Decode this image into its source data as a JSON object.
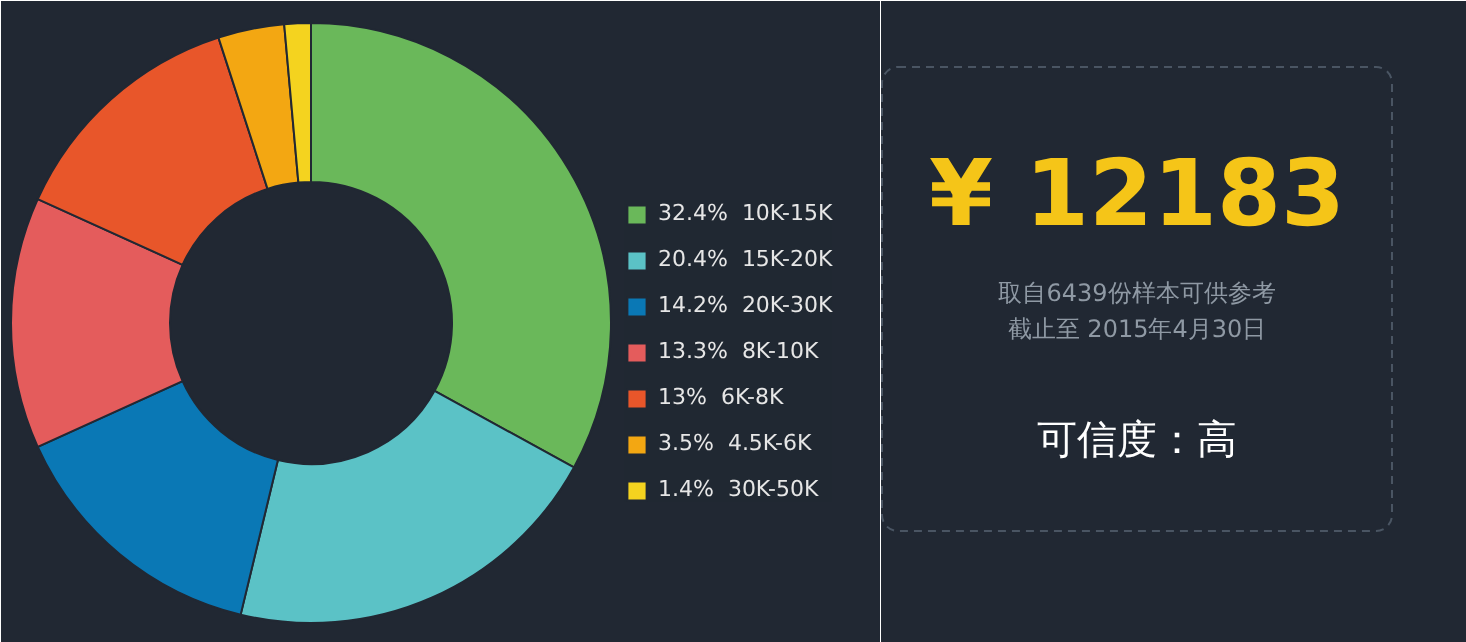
{
  "chart_data": [
    {
      "type": "donut",
      "categories": [
        "10K-15K",
        "15K-20K",
        "20K-30K",
        "8K-10K",
        "6K-8K",
        "4.5K-6K",
        "30K-50K"
      ],
      "values": [
        32.4,
        20.4,
        14.2,
        13.3,
        13,
        3.5,
        1.4
      ],
      "value_labels": [
        "32.4%",
        "20.4%",
        "14.2%",
        "13.3%",
        "13%",
        "3.5%",
        "1.4%"
      ],
      "colors": [
        "#6ab85a",
        "#5bc2c6",
        "#0a78b5",
        "#e45c5c",
        "#e8562a",
        "#f3a712",
        "#f4d31f"
      ],
      "legend": "right"
    },
    {
      "type": "other",
      "title": "¥ 12183",
      "annotations": [
        "取自6439份样本可供参考",
        "截止至 2015年4月30日",
        "可信度：高"
      ]
    }
  ]
}
